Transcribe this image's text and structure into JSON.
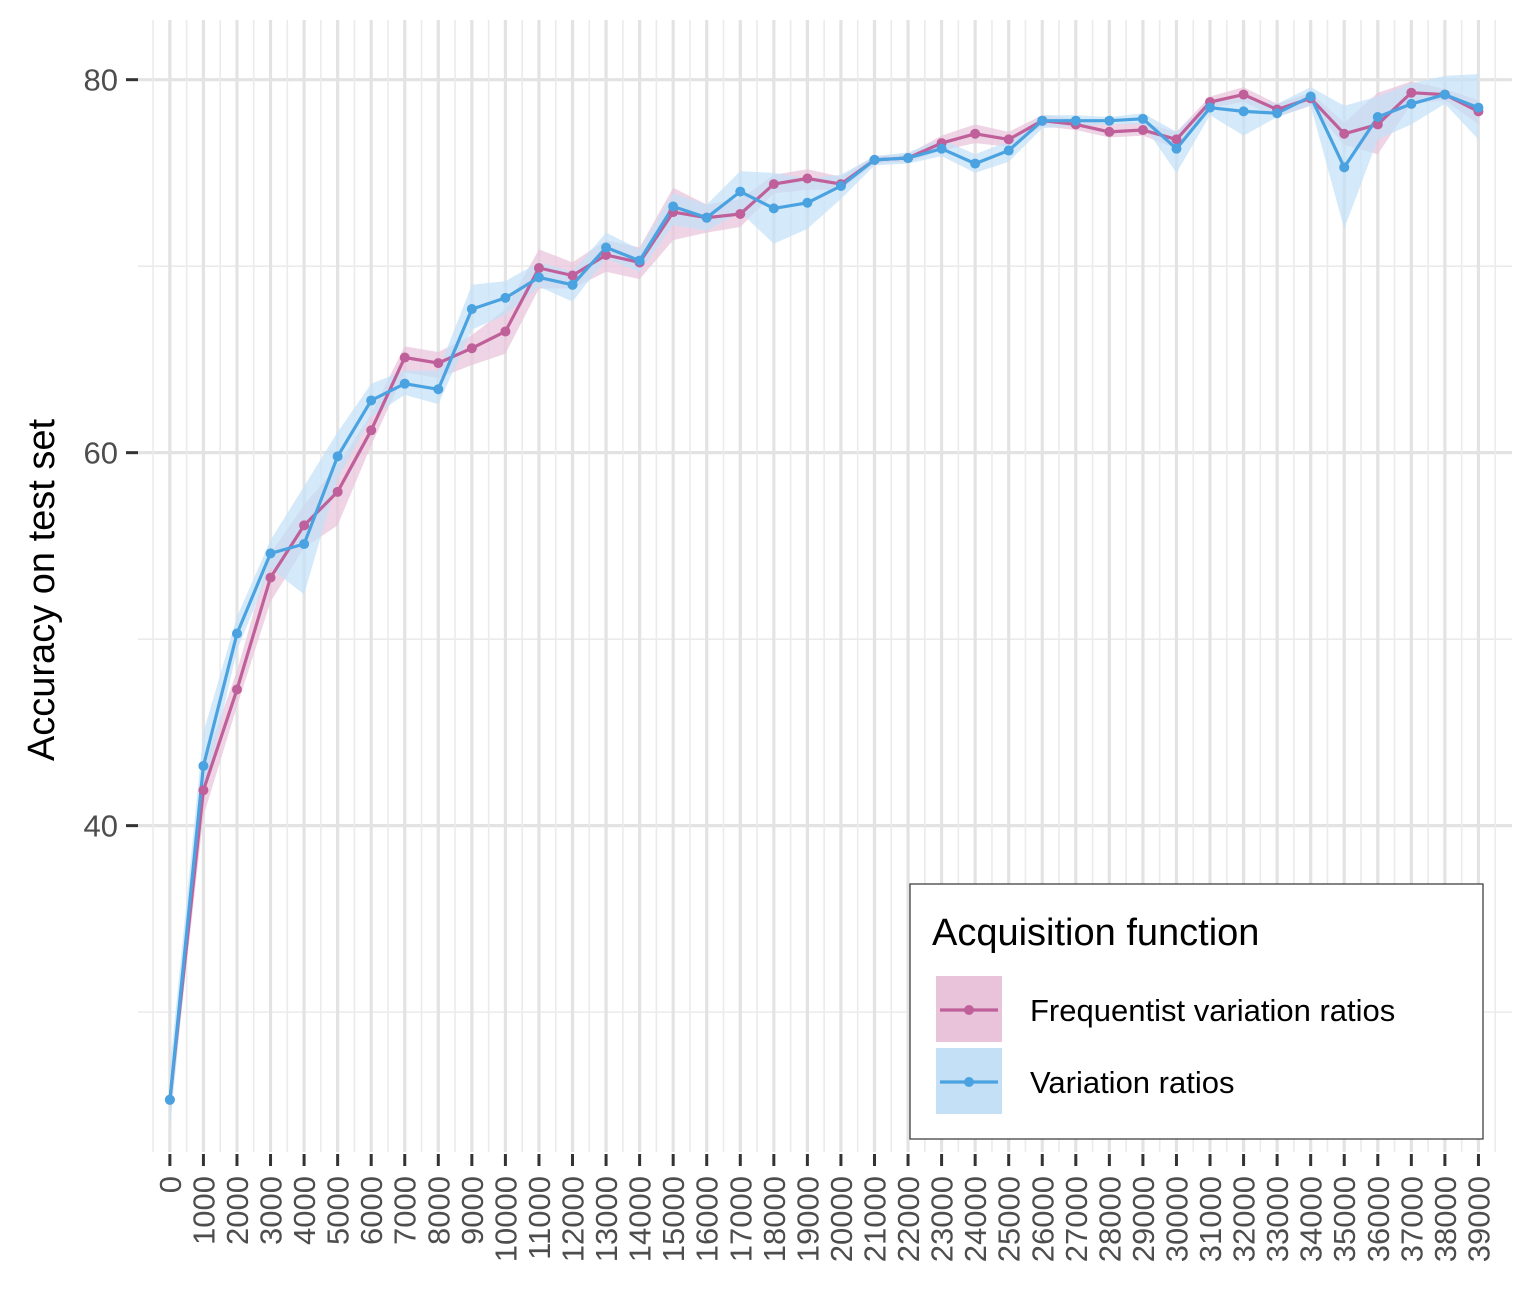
{
  "chart_data": {
    "type": "line",
    "title": "",
    "xlabel": "",
    "ylabel": "Accuracy on test set",
    "ylim": [
      22.5,
      83.2
    ],
    "xlim": [
      -950,
      40000
    ],
    "y_ticks": [
      40,
      60,
      80
    ],
    "x_tick_values": [
      0,
      1000,
      2000,
      3000,
      4000,
      5000,
      6000,
      7000,
      8000,
      9000,
      10000,
      11000,
      12000,
      13000,
      14000,
      15000,
      16000,
      17000,
      18000,
      19000,
      20000,
      21000,
      22000,
      23000,
      24000,
      25000,
      26000,
      27000,
      28000,
      29000,
      30000,
      31000,
      32000,
      33000,
      34000,
      35000,
      36000,
      37000,
      38000,
      39000
    ],
    "x_tick_labels": [
      "0",
      "1000",
      "2000",
      "3000",
      "4000",
      "5000",
      "6000",
      "7000",
      "8000",
      "9000",
      "10000",
      "11000",
      "12000",
      "13000",
      "14000",
      "15000",
      "16000",
      "17000",
      "18000",
      "19000",
      "20000",
      "21000",
      "22000",
      "23000",
      "24000",
      "25000",
      "26000",
      "27000",
      "28000",
      "29000",
      "30000",
      "31000",
      "32000",
      "33000",
      "34000",
      "35000",
      "36000",
      "37000",
      "38000",
      "39000"
    ],
    "grid": true,
    "legend": {
      "title": "Acquisition function",
      "position": "bottom-right"
    },
    "x": [
      0,
      1000,
      2000,
      3000,
      4000,
      5000,
      6000,
      7000,
      8000,
      9000,
      10000,
      11000,
      12000,
      13000,
      14000,
      15000,
      16000,
      17000,
      18000,
      19000,
      20000,
      21000,
      22000,
      23000,
      24000,
      25000,
      26000,
      27000,
      28000,
      29000,
      30000,
      31000,
      32000,
      33000,
      34000,
      35000,
      36000,
      37000,
      38000,
      39000
    ],
    "series": [
      {
        "name": "Frequentist variation ratios",
        "color": "#c0609a",
        "band_color": "#e8c3d9",
        "values": [
          25.3,
          41.9,
          47.3,
          53.3,
          56.1,
          57.9,
          61.2,
          65.1,
          64.8,
          65.6,
          66.5,
          69.9,
          69.5,
          70.6,
          70.2,
          72.9,
          72.6,
          72.8,
          74.4,
          74.7,
          74.4,
          75.7,
          75.8,
          76.6,
          77.1,
          76.8,
          77.8,
          77.6,
          77.2,
          77.3,
          76.8,
          78.8,
          79.2,
          78.4,
          79.0,
          77.1,
          77.6,
          79.3,
          79.2,
          78.3
        ],
        "lower": [
          24.6,
          40.5,
          46.4,
          52.0,
          54.9,
          56.1,
          60.4,
          64.3,
          64.0,
          64.7,
          65.3,
          68.8,
          68.8,
          69.7,
          69.3,
          71.4,
          71.8,
          72.1,
          73.9,
          74.1,
          74.1,
          75.5,
          75.6,
          76.2,
          76.6,
          76.4,
          77.5,
          77.3,
          76.9,
          77.0,
          76.3,
          78.5,
          78.8,
          78.0,
          78.6,
          76.5,
          76.0,
          78.7,
          78.9,
          77.6
        ],
        "upper": [
          26.0,
          43.2,
          48.3,
          54.6,
          57.2,
          59.3,
          62.1,
          65.7,
          65.4,
          66.3,
          67.7,
          70.9,
          70.2,
          71.4,
          71.0,
          74.2,
          73.3,
          73.6,
          74.9,
          75.2,
          74.8,
          75.9,
          76.0,
          77.0,
          77.6,
          77.2,
          78.1,
          77.9,
          77.6,
          77.7,
          77.2,
          79.1,
          79.6,
          78.7,
          79.3,
          77.7,
          79.3,
          79.9,
          79.5,
          78.9
        ]
      },
      {
        "name": "Variation ratios",
        "color": "#4aa3e0",
        "band_color": "#c3e0f7",
        "values": [
          25.3,
          43.2,
          50.3,
          54.6,
          55.1,
          59.8,
          62.8,
          63.7,
          63.4,
          67.7,
          68.3,
          69.4,
          69.0,
          71.0,
          70.3,
          73.2,
          72.6,
          74.0,
          73.1,
          73.4,
          74.3,
          75.7,
          75.8,
          76.3,
          75.5,
          76.2,
          77.8,
          77.8,
          77.8,
          77.9,
          76.3,
          78.5,
          78.3,
          78.2,
          79.1,
          75.3,
          78.0,
          78.7,
          79.2,
          78.5
        ],
        "lower": [
          23.8,
          41.5,
          49.4,
          53.8,
          52.4,
          58.6,
          61.9,
          63.1,
          62.6,
          66.6,
          67.4,
          68.9,
          68.1,
          70.4,
          69.7,
          72.2,
          71.9,
          72.9,
          71.2,
          72.0,
          73.6,
          75.4,
          75.5,
          75.9,
          75.0,
          75.6,
          77.4,
          77.5,
          77.6,
          77.6,
          75.0,
          78.1,
          77.0,
          78.0,
          78.6,
          72.0,
          76.8,
          77.6,
          78.7,
          76.8
        ],
        "upper": [
          27.0,
          45.0,
          51.2,
          55.3,
          58.2,
          61.1,
          63.7,
          64.4,
          64.4,
          69.0,
          69.2,
          70.2,
          69.7,
          71.8,
          70.9,
          73.9,
          73.3,
          75.1,
          75.0,
          74.7,
          74.9,
          75.9,
          76.1,
          76.8,
          76.0,
          76.7,
          78.1,
          78.1,
          78.0,
          78.2,
          77.2,
          78.8,
          79.0,
          78.7,
          79.6,
          78.6,
          79.1,
          79.8,
          80.2,
          80.3
        ]
      }
    ]
  }
}
